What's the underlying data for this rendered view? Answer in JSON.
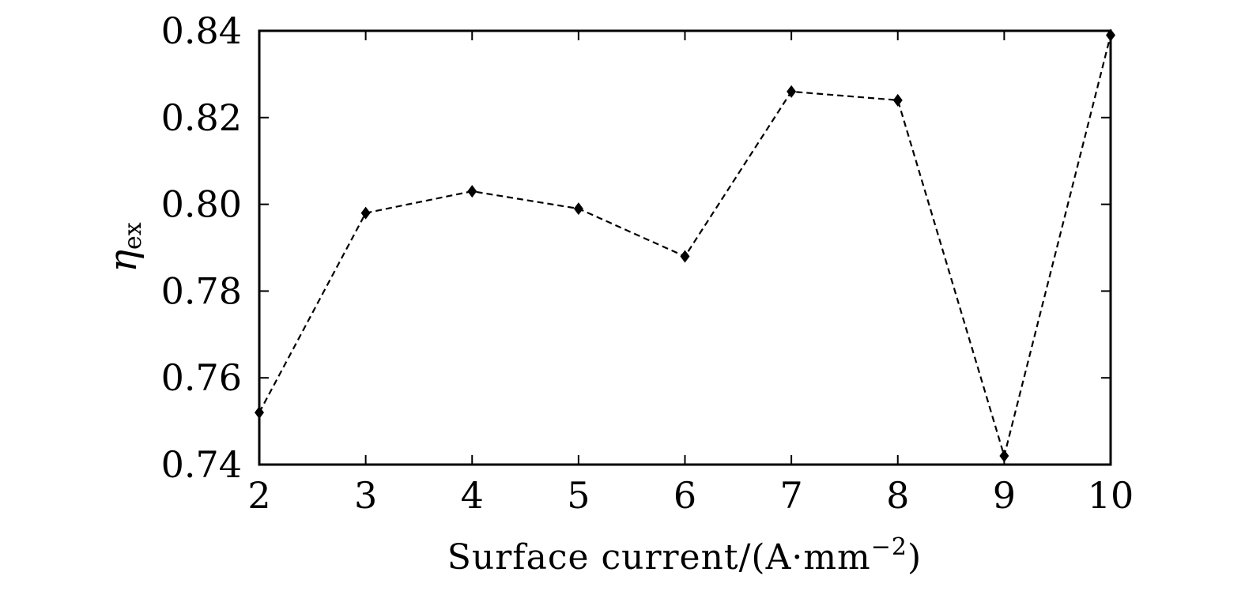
{
  "chart_data": {
    "type": "line",
    "title": "",
    "xlabel": "Surface current/(A·mm−2)",
    "xlabel_parts": {
      "main": "Surface current/(A·mm",
      "sup": "−2",
      "close": ")"
    },
    "ylabel": "ηex",
    "ylabel_parts": {
      "symbol": "η",
      "sub": "ex"
    },
    "x": [
      2,
      3,
      4,
      5,
      6,
      7,
      8,
      9,
      10
    ],
    "series": [
      {
        "values": [
          0.752,
          0.798,
          0.803,
          0.799,
          0.788,
          0.826,
          0.824,
          0.742,
          0.839
        ]
      }
    ],
    "xlim": [
      2,
      10
    ],
    "ylim": [
      0.74,
      0.84
    ],
    "xticks": [
      2,
      3,
      4,
      5,
      6,
      7,
      8,
      9,
      10
    ],
    "xtick_labels": [
      "2",
      "3",
      "4",
      "5",
      "6",
      "7",
      "8",
      "9",
      "10"
    ],
    "yticks": [
      0.74,
      0.76,
      0.78,
      0.8,
      0.82,
      0.84
    ],
    "ytick_labels": [
      "0.74",
      "0.76",
      "0.78",
      "0.80",
      "0.82",
      "0.84"
    ],
    "line_style": "dashed",
    "marker": "diamond",
    "grid": false,
    "legend": "none",
    "color": "#000000"
  }
}
